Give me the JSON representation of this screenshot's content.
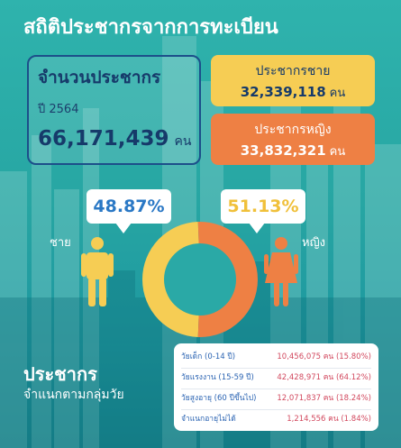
{
  "title": "สถิติประชากรจากการทะเบียน",
  "total": {
    "label": "จำนวนประชากร",
    "year": "ปี 2564",
    "value": "66,171,439",
    "unit": "คน"
  },
  "male": {
    "box_label": "ประชากรชาย",
    "value": "32,339,118",
    "unit": "คน",
    "percent_label": "48.87%",
    "gender_label": "ชาย",
    "color": "#f6cd54"
  },
  "female": {
    "box_label": "ประชากรหญิง",
    "value": "33,832,321",
    "unit": "คน",
    "percent_label": "51.13%",
    "gender_label": "หญิง",
    "color": "#ee8044"
  },
  "age_section": {
    "title": "ประชากร",
    "subtitle": "จำแนกตามกลุ่มวัย",
    "rows": [
      {
        "name": "วัยเด็ก (0-14 ปี)",
        "value": "10,456,075 คน (15.80%)"
      },
      {
        "name": "วัยแรงงาน (15-59 ปี)",
        "value": "42,428,971 คน (64.12%)"
      },
      {
        "name": "วัยสูงอายุ (60 ปีขึ้นไป)",
        "value": "12,071,837 คน (18.24%)"
      },
      {
        "name": "จำแนกอายุไม่ได้",
        "value": "1,214,556 คน (1.84%)"
      }
    ]
  },
  "chart_data": {
    "type": "pie",
    "categories": [
      "ชาย",
      "หญิง"
    ],
    "values": [
      48.87,
      51.13
    ],
    "colors": [
      "#f6cd54",
      "#ee8044"
    ],
    "unit": "%"
  }
}
